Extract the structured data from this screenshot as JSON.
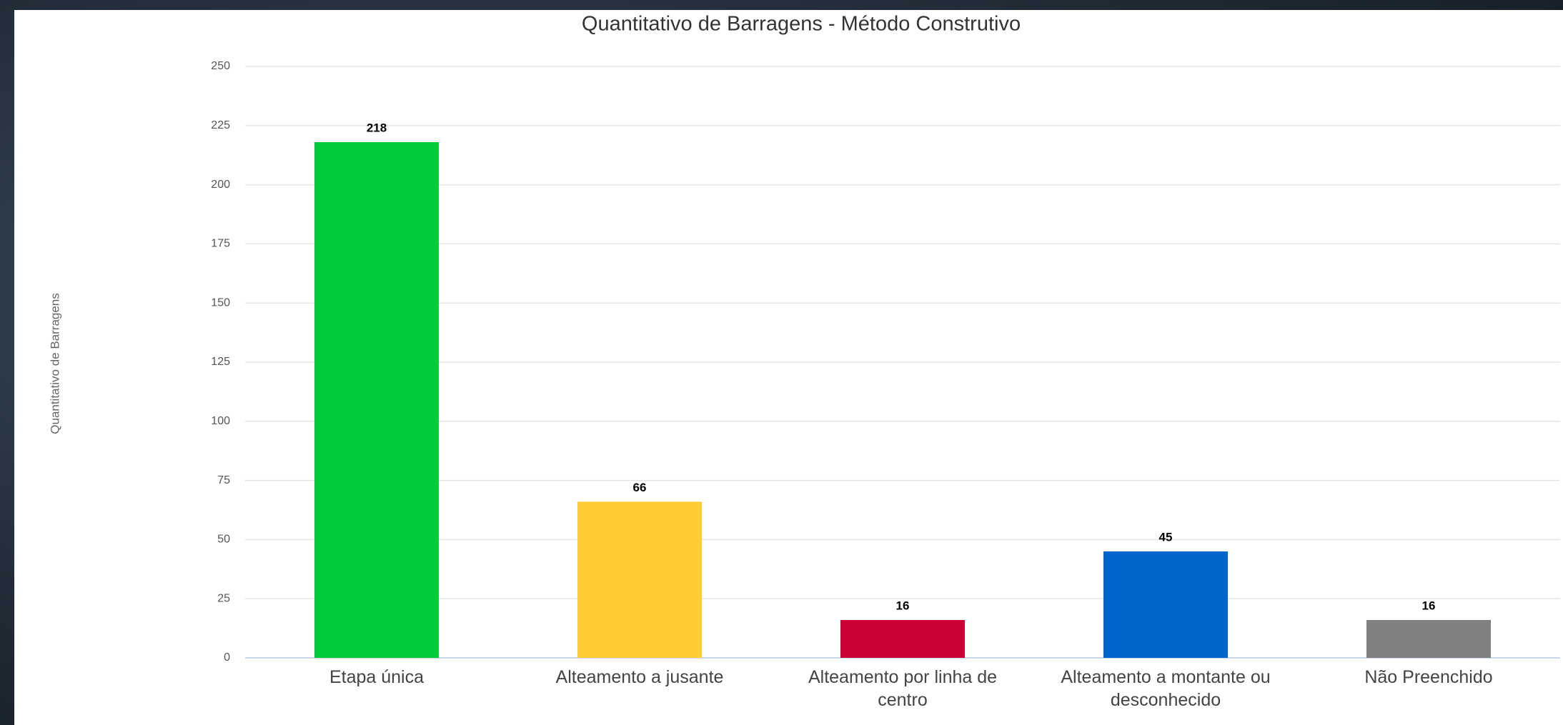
{
  "chart_data": {
    "type": "bar",
    "title": "Quantitativo de Barragens - Método Construtivo",
    "y_label": "Quantitativo de Barragens",
    "categories": [
      "Etapa única",
      "Alteamento a jusante",
      "Alteamento por linha de centro",
      "Alteamento a montante ou desconhecido",
      "Não Preenchido"
    ],
    "values": [
      218,
      66,
      16,
      45,
      16
    ],
    "colors": [
      "#00cc3a",
      "#ffcc33",
      "#cc0033",
      "#0066cc",
      "#808080"
    ],
    "ylim": [
      0,
      250
    ],
    "yticks": [
      0,
      25,
      50,
      75,
      100,
      125,
      150,
      175,
      200,
      225,
      250
    ],
    "grid": true
  }
}
